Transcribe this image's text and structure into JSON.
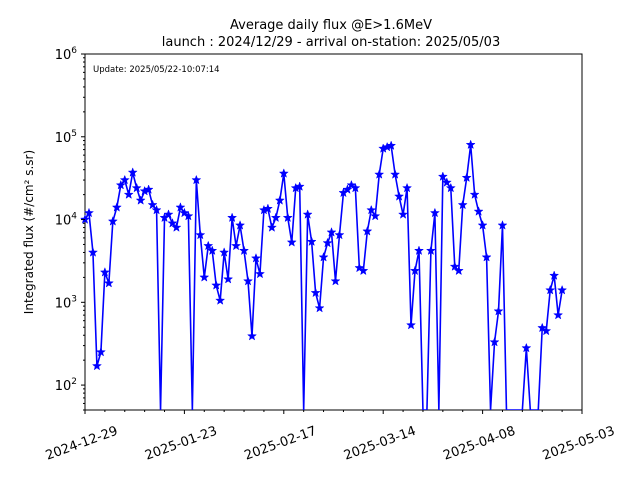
{
  "chart_data": {
    "type": "line",
    "title": "Average daily flux @E>1.6MeV",
    "subtitle": "launch : 2024/12/29 - arrival on-station: 2025/05/03",
    "ylabel": "Integrated flux (#/cm² s.sr)",
    "xlabel": "",
    "annotation": "Update: 2025/05/22-10:07:14",
    "y_scale": "log",
    "ylim": [
      50,
      1000000
    ],
    "xlim": [
      "2024-12-29",
      "2025-05-03"
    ],
    "x_ticks": [
      "2024-12-29",
      "2025-01-23",
      "2025-02-17",
      "2025-03-14",
      "2025-04-08",
      "2025-05-03"
    ],
    "y_ticks": [
      {
        "value": 100,
        "base": "10",
        "exp": "2"
      },
      {
        "value": 1000,
        "base": "10",
        "exp": "3"
      },
      {
        "value": 10000,
        "base": "10",
        "exp": "4"
      },
      {
        "value": 100000,
        "base": "10",
        "exp": "5"
      },
      {
        "value": 1000000,
        "base": "10",
        "exp": "6"
      }
    ],
    "grid": false,
    "color": "#0000ff",
    "marker": "star",
    "series": [
      {
        "x": [
          "2024-12-29",
          "2024-12-30",
          "2024-12-31",
          "2025-01-01",
          "2025-01-02",
          "2025-01-03",
          "2025-01-04",
          "2025-01-05",
          "2025-01-06",
          "2025-01-07",
          "2025-01-08",
          "2025-01-09",
          "2025-01-10",
          "2025-01-11",
          "2025-01-12",
          "2025-01-13",
          "2025-01-14",
          "2025-01-15",
          "2025-01-16",
          "2025-01-17",
          "2025-01-18",
          "2025-01-19",
          "2025-01-20",
          "2025-01-21",
          "2025-01-22",
          "2025-01-23",
          "2025-01-24",
          "2025-01-25",
          "2025-01-26",
          "2025-01-27",
          "2025-01-28",
          "2025-01-29",
          "2025-01-30",
          "2025-01-31",
          "2025-02-01",
          "2025-02-02",
          "2025-02-03",
          "2025-02-04",
          "2025-02-05",
          "2025-02-06",
          "2025-02-07",
          "2025-02-08",
          "2025-02-09",
          "2025-02-10",
          "2025-02-11",
          "2025-02-12",
          "2025-02-13",
          "2025-02-14",
          "2025-02-15",
          "2025-02-16",
          "2025-02-17",
          "2025-02-18",
          "2025-02-19",
          "2025-02-20",
          "2025-02-21",
          "2025-02-22",
          "2025-02-23",
          "2025-02-24",
          "2025-02-25",
          "2025-02-26",
          "2025-02-27",
          "2025-02-28",
          "2025-03-01",
          "2025-03-02",
          "2025-03-03",
          "2025-03-04",
          "2025-03-05",
          "2025-03-06",
          "2025-03-07",
          "2025-03-08",
          "2025-03-09",
          "2025-03-10",
          "2025-03-11",
          "2025-03-12",
          "2025-03-13",
          "2025-03-14",
          "2025-03-15",
          "2025-03-16",
          "2025-03-17",
          "2025-03-18",
          "2025-03-19",
          "2025-03-20",
          "2025-03-21",
          "2025-03-22",
          "2025-03-23",
          "2025-03-24",
          "2025-03-25",
          "2025-03-26",
          "2025-03-27",
          "2025-03-28",
          "2025-03-29",
          "2025-03-30",
          "2025-03-31",
          "2025-04-01",
          "2025-04-02",
          "2025-04-03",
          "2025-04-04",
          "2025-04-05",
          "2025-04-06",
          "2025-04-07",
          "2025-04-08",
          "2025-04-09",
          "2025-04-10",
          "2025-04-11",
          "2025-04-12",
          "2025-04-13",
          "2025-04-14",
          "2025-04-15",
          "2025-04-16",
          "2025-04-17",
          "2025-04-18",
          "2025-04-19",
          "2025-04-20",
          "2025-04-21",
          "2025-04-22",
          "2025-04-23",
          "2025-04-24",
          "2025-04-25",
          "2025-04-26",
          "2025-04-27",
          "2025-04-28"
        ],
        "values": [
          10000,
          12000,
          4000,
          170,
          250,
          2300,
          1700,
          9500,
          14000,
          26000,
          30000,
          20000,
          37000,
          24000,
          17000,
          22000,
          23000,
          15000,
          13000,
          null,
          10500,
          11500,
          9000,
          8000,
          14000,
          12000,
          11000,
          null,
          30000,
          6500,
          2000,
          4800,
          4200,
          1600,
          1050,
          4000,
          1900,
          10500,
          4800,
          8500,
          4200,
          1800,
          390,
          3400,
          2200,
          13000,
          13500,
          8000,
          10500,
          17000,
          36000,
          10500,
          5300,
          24000,
          25000,
          null,
          11500,
          5400,
          1300,
          850,
          3500,
          5200,
          7000,
          1800,
          6500,
          21000,
          23000,
          26000,
          24000,
          2600,
          2400,
          7200,
          13000,
          11000,
          35000,
          72000,
          75000,
          78000,
          35000,
          19000,
          11500,
          24000,
          530,
          2400,
          4200,
          null,
          null,
          4200,
          12000,
          null,
          33000,
          28000,
          24000,
          2700,
          2400,
          15000,
          32000,
          80000,
          20000,
          12500,
          8500,
          3500,
          null,
          330,
          780,
          8500,
          null,
          null,
          null,
          null,
          null,
          280,
          null,
          null,
          null,
          490,
          450,
          1400,
          2100,
          700,
          1400
        ]
      }
    ]
  }
}
